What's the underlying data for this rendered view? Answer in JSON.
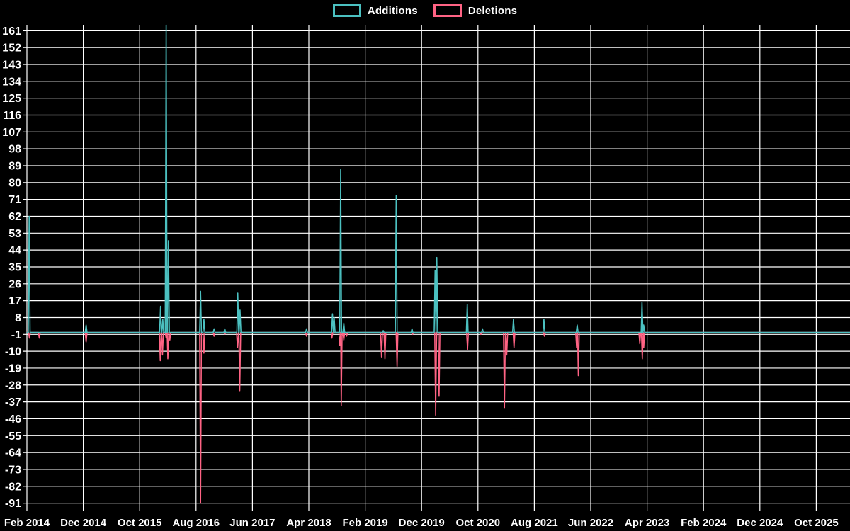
{
  "legend": {
    "items": [
      {
        "label": "Additions",
        "color": "#4bc0c0"
      },
      {
        "label": "Deletions",
        "color": "#ff6384"
      }
    ]
  },
  "colors": {
    "background": "#000000",
    "grid": "#ffffff",
    "text": "#ffffff",
    "additions": "#4bc0c0",
    "deletions": "#ff6384"
  },
  "chart_data": {
    "type": "line",
    "title": "",
    "xlabel": "",
    "ylabel": "",
    "x_unit": "months since Feb 2014 (x tick spacing = 10 months)",
    "x_tick_labels": [
      "Feb 2014",
      "Dec 2014",
      "Oct 2015",
      "Aug 2016",
      "Jun 2017",
      "Apr 2018",
      "Feb 2019",
      "Dec 2019",
      "Oct 2020",
      "Aug 2021",
      "Jun 2022",
      "Apr 2023",
      "Feb 2024",
      "Dec 2024",
      "Oct 2025"
    ],
    "x_tick_months": [
      0,
      10,
      20,
      30,
      40,
      50,
      60,
      70,
      80,
      90,
      100,
      110,
      120,
      130,
      140
    ],
    "x_range_months": [
      0,
      146
    ],
    "y_axis": {
      "tick_min": -91,
      "tick_max": 161,
      "tick_step": 9,
      "scale_min": -91,
      "scale_max": 164
    },
    "grid": true,
    "legend_position": "top-center",
    "baseline_value": 0,
    "series": [
      {
        "name": "Additions",
        "color": "#4bc0c0",
        "points_note": "sparse spikes as [month, value]; series is 0 elsewhere",
        "points": [
          [
            0.4,
            62
          ],
          [
            10.5,
            4
          ],
          [
            23.7,
            14
          ],
          [
            24.1,
            7
          ],
          [
            24.7,
            164
          ],
          [
            25.1,
            49
          ],
          [
            30.8,
            22
          ],
          [
            31.4,
            7
          ],
          [
            33.2,
            2
          ],
          [
            35.1,
            2
          ],
          [
            37.4,
            21
          ],
          [
            37.8,
            12
          ],
          [
            49.6,
            2
          ],
          [
            54.2,
            10
          ],
          [
            54.5,
            8
          ],
          [
            55.65,
            87
          ],
          [
            56.2,
            5
          ],
          [
            63.2,
            1
          ],
          [
            65.5,
            73
          ],
          [
            68.3,
            2
          ],
          [
            72.4,
            33
          ],
          [
            72.7,
            40
          ],
          [
            78.1,
            15
          ],
          [
            80.8,
            2
          ],
          [
            86.3,
            7
          ],
          [
            91.7,
            7
          ],
          [
            97.6,
            4
          ],
          [
            109.1,
            16
          ],
          [
            109.4,
            4
          ]
        ]
      },
      {
        "name": "Deletions",
        "color": "#ff6384",
        "points_note": "sparse spikes as [month, value]; series is 0 elsewhere",
        "points": [
          [
            0.45,
            -3
          ],
          [
            2.2,
            -3
          ],
          [
            10.5,
            -5
          ],
          [
            23.65,
            -15
          ],
          [
            24.05,
            -12
          ],
          [
            24.7,
            -3
          ],
          [
            25.0,
            -14
          ],
          [
            25.35,
            -4
          ],
          [
            30.8,
            -91
          ],
          [
            31.4,
            -11
          ],
          [
            33.2,
            -2
          ],
          [
            35.1,
            -1
          ],
          [
            37.35,
            -8
          ],
          [
            37.75,
            -31
          ],
          [
            49.6,
            -2
          ],
          [
            54.1,
            -3
          ],
          [
            55.5,
            -7
          ],
          [
            55.75,
            -39
          ],
          [
            56.2,
            -4
          ],
          [
            56.7,
            -2
          ],
          [
            62.9,
            -13
          ],
          [
            63.5,
            -14
          ],
          [
            65.65,
            -18
          ],
          [
            68.4,
            -1
          ],
          [
            72.5,
            -44
          ],
          [
            73.1,
            -34
          ],
          [
            78.15,
            -9
          ],
          [
            80.5,
            -1
          ],
          [
            84.7,
            -40
          ],
          [
            85.1,
            -12
          ],
          [
            86.4,
            -8
          ],
          [
            91.8,
            -2
          ],
          [
            97.5,
            -8
          ],
          [
            97.8,
            -23
          ],
          [
            108.7,
            -6
          ],
          [
            109.15,
            -14
          ],
          [
            109.4,
            -8
          ]
        ]
      }
    ]
  }
}
